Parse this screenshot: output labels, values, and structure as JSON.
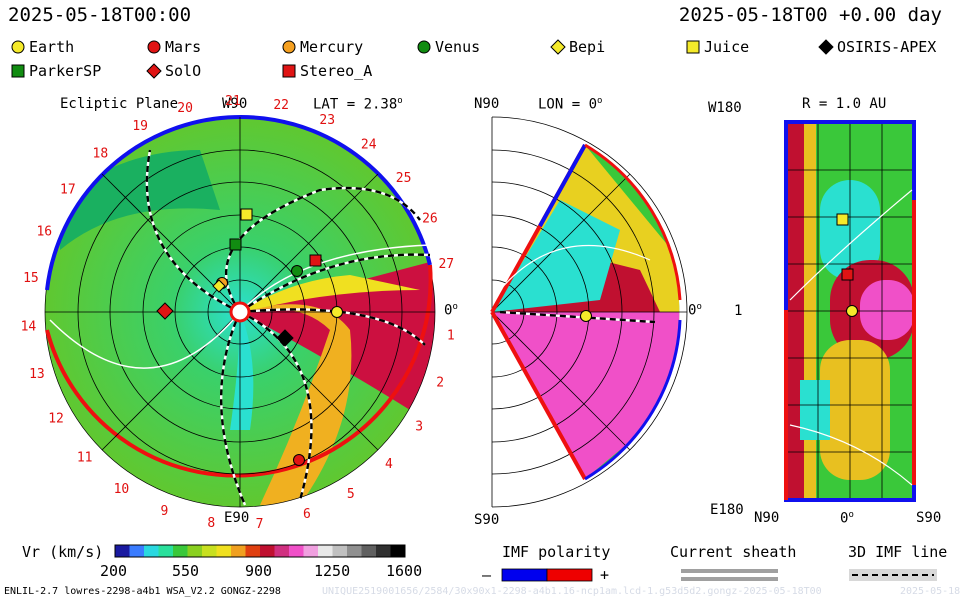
{
  "header": {
    "datetime_left": "2025-05-18T00:00",
    "datetime_right": "2025-05-18T00 +0.00 day"
  },
  "legend": [
    {
      "name": "Earth",
      "marker": "circle",
      "color": "#f5ea2a"
    },
    {
      "name": "Mars",
      "marker": "circle",
      "color": "#e01414"
    },
    {
      "name": "Mercury",
      "marker": "circle",
      "color": "#f5a020"
    },
    {
      "name": "Venus",
      "marker": "circle",
      "color": "#118c11"
    },
    {
      "name": "Bepi",
      "marker": "diamond",
      "color": "#f5ea2a"
    },
    {
      "name": "Juice",
      "marker": "square",
      "color": "#f5ea2a"
    },
    {
      "name": "OSIRIS-APEX",
      "marker": "diamond",
      "color": "#000000"
    },
    {
      "name": "ParkerSP",
      "marker": "square",
      "color": "#118c11"
    },
    {
      "name": "SolO",
      "marker": "diamond",
      "color": "#e01414"
    },
    {
      "name": "Stereo_A",
      "marker": "square",
      "color": "#e01414"
    }
  ],
  "ecliptic_panel": {
    "title": "Ecliptic Plane",
    "lat_label": "LAT = 2.38",
    "lat_sup": "o",
    "top_label": "W90",
    "bottom_label": "E90",
    "right_label": "0",
    "right_sup": "o",
    "carrington_numbers": [
      "1",
      "2",
      "3",
      "4",
      "5",
      "6",
      "7",
      "8",
      "9",
      "10",
      "11",
      "12",
      "13",
      "14",
      "15",
      "16",
      "17",
      "18",
      "19",
      "20",
      "21",
      "22",
      "23",
      "24",
      "25",
      "26",
      "27"
    ]
  },
  "meridional_panel": {
    "top_label": "N90",
    "lon_label": "LON = 0",
    "lon_sup": "o",
    "bottom_label": "S90",
    "right_label": "0",
    "right_sup": "o"
  },
  "map_panel": {
    "top_left_label": "W180",
    "title": "R = 1.0 AU",
    "mid_label": "1",
    "bottom_left_label": "E180",
    "x_labels": [
      "N90",
      "0",
      "S90"
    ],
    "x_sup": "o"
  },
  "colorbar": {
    "label": "Vr (km/s)",
    "ticks": [
      "200",
      "550",
      "900",
      "1250",
      "1600"
    ],
    "colors": [
      "#1a1aa0",
      "#3a7cff",
      "#2ad8e0",
      "#2ae09c",
      "#3ac83a",
      "#8ad020",
      "#c8e020",
      "#f0e020",
      "#f0a020",
      "#e04010",
      "#c01030",
      "#d03080",
      "#f050c8",
      "#f0a0e0",
      "#e8e8e8",
      "#c0c0c0",
      "#909090",
      "#606060",
      "#303030",
      "#000000"
    ]
  },
  "imf_polarity": {
    "label": "IMF polarity",
    "minus": "–",
    "plus": "+",
    "neg_color": "#0000ee",
    "pos_color": "#ee0000"
  },
  "current_sheath": {
    "label": "Current sheath"
  },
  "imf_line": {
    "label": "3D IMF line"
  },
  "footer": {
    "model": "ENLIL-2.7 lowres-2298-a4b1 WSA_V2.2 GONGZ-2298",
    "faint": "UNIQUE2519001656/2584/30x90x1-2298-a4b1.16-ncp1am.lcd-1.g53d5d2.gongz-2025-05-18T00",
    "faint2": "2025-05-18"
  },
  "chart_data": [
    {
      "type": "heatmap",
      "title": "Ecliptic Plane",
      "quantity": "Vr (km/s)",
      "colorbar_range": [
        200,
        1600
      ],
      "bodies": [
        "Earth",
        "Mars",
        "Mercury",
        "Venus",
        "Bepi",
        "Juice",
        "OSIRIS-APEX",
        "ParkerSP",
        "SolO",
        "Stereo_A"
      ],
      "field": "polar"
    },
    {
      "type": "heatmap",
      "title": "LON = 0",
      "quantity": "Vr (km/s)",
      "field": "meridional"
    },
    {
      "type": "heatmap",
      "title": "R = 1.0 AU",
      "quantity": "Vr (km/s)",
      "field": "lat-lon map"
    }
  ]
}
